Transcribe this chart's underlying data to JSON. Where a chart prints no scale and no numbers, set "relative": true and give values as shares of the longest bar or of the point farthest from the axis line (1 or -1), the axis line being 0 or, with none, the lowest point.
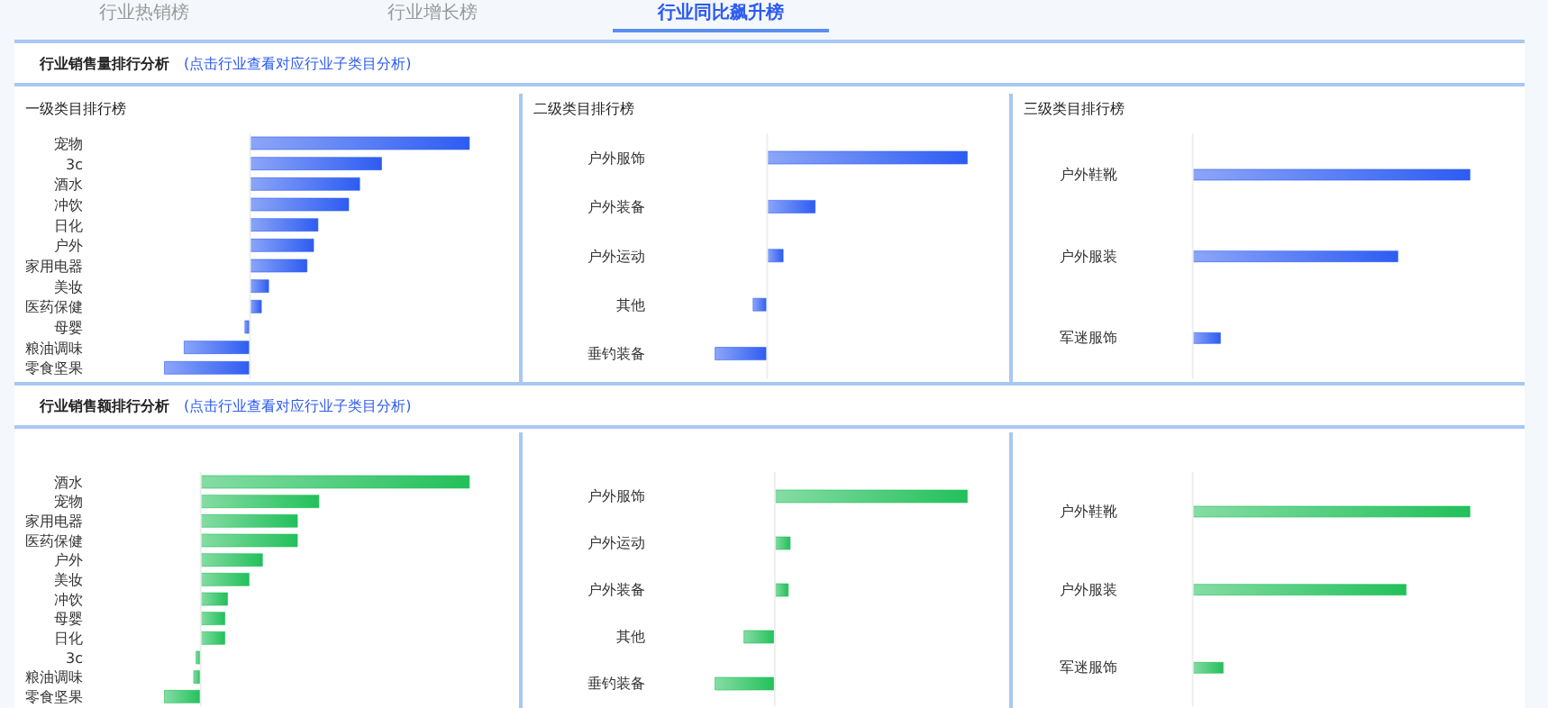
{
  "chart_data": [
    {
      "type": "bar",
      "orientation": "horizontal",
      "relative": true,
      "title": "一级类目排行榜",
      "annotations": [
        "行业热销榜",
        "行业增长榜",
        "行业同比飙升榜",
        "行业销售量排行分析",
        "(点击行业查看对应行业子类目分析)"
      ],
      "categories": [
        "宠物",
        "3c",
        "酒水",
        "冲饮",
        "日化",
        "户外",
        "家用电器",
        "美妆",
        "医药保健",
        "母婴",
        "粮油调味",
        "零食坚果"
      ],
      "series": [
        {
          "color": "#2d5cf2",
          "values": [
            1,
            0.6,
            0.5,
            0.45,
            0.31,
            0.29,
            0.26,
            0.085,
            0.052,
            -0.023,
            -0.3,
            -0.39
          ]
        }
      ]
    },
    {
      "type": "bar",
      "orientation": "horizontal",
      "relative": true,
      "title": "二级类目排行榜",
      "categories": [
        "户外服饰",
        "户外装备",
        "户外运动",
        "其他",
        "垂钓装备"
      ],
      "series": [
        {
          "color": "#2d5cf2",
          "values": [
            1,
            0.24,
            0.08,
            -0.07,
            -0.26
          ]
        }
      ]
    },
    {
      "type": "bar",
      "orientation": "horizontal",
      "relative": true,
      "title": "三级类目排行榜",
      "categories": [
        "户外鞋靴",
        "户外服装",
        "军迷服饰"
      ],
      "series": [
        {
          "color": "#2d5cf2",
          "values": [
            1,
            0.74,
            0.1
          ]
        }
      ]
    },
    {
      "type": "bar",
      "orientation": "horizontal",
      "relative": true,
      "annotations": [
        "行业销售额排行分析",
        "(点击行业查看对应行业子类目分析)"
      ],
      "categories": [
        "酒水",
        "宠物",
        "家用电器",
        "医药保健",
        "户外",
        "美妆",
        "冲饮",
        "母婴",
        "日化",
        "3c",
        "粮油调味",
        "零食坚果"
      ],
      "series": [
        {
          "color": "#22c05a",
          "values": [
            1,
            0.44,
            0.36,
            0.36,
            0.23,
            0.18,
            0.1,
            0.09,
            0.09,
            -0.017,
            -0.026,
            -0.135
          ]
        }
      ]
    },
    {
      "type": "bar",
      "orientation": "horizontal",
      "relative": true,
      "categories": [
        "户外服饰",
        "户外运动",
        "户外装备",
        "其他",
        "垂钓装备"
      ],
      "series": [
        {
          "color": "#22c05a",
          "values": [
            1,
            0.08,
            0.07,
            -0.16,
            -0.31
          ]
        }
      ]
    },
    {
      "type": "bar",
      "orientation": "horizontal",
      "relative": true,
      "categories": [
        "户外鞋靴",
        "户外服装",
        "军迷服饰"
      ],
      "series": [
        {
          "color": "#22c05a",
          "values": [
            1,
            0.77,
            0.11
          ]
        }
      ]
    }
  ]
}
